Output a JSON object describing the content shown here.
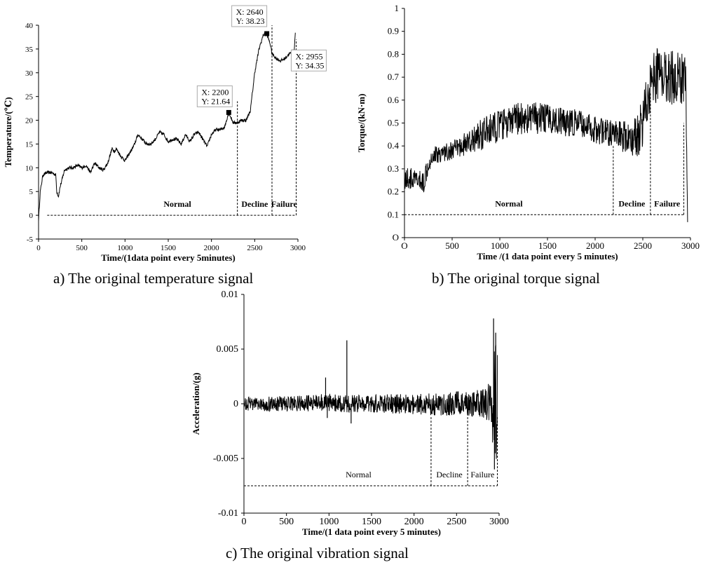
{
  "chart_data": [
    {
      "type": "line",
      "caption": "a) The original temperature signal",
      "xlabel": "Time/(1data point every 5minutes)",
      "ylabel": "Temperature/(℃)",
      "xlim": [
        0,
        3000
      ],
      "ylim": [
        -5,
        40
      ],
      "xticks": [
        0,
        500,
        1000,
        1500,
        2000,
        2500,
        3000
      ],
      "xtick_labels": [
        "0",
        "500",
        "1000",
        "1500",
        "2000",
        "2500",
        "3000"
      ],
      "yticks": [
        -5,
        0,
        5,
        10,
        15,
        20,
        25,
        30,
        35,
        40
      ],
      "ytick_labels": [
        "-5",
        "0",
        "5",
        "10",
        "15",
        "20",
        "25",
        "30",
        "35",
        "40"
      ],
      "grid": false,
      "series": [
        {
          "x": [
            0,
            20,
            50,
            100,
            150,
            200,
            210,
            230,
            250,
            300,
            350,
            400,
            450,
            500,
            550,
            600,
            650,
            700,
            750,
            800,
            850,
            880,
            900,
            950,
            1000,
            1050,
            1100,
            1150,
            1200,
            1250,
            1300,
            1350,
            1400,
            1450,
            1500,
            1550,
            1600,
            1650,
            1700,
            1750,
            1800,
            1850,
            1900,
            1950,
            2000,
            2050,
            2100,
            2150,
            2200,
            2250,
            2300,
            2350,
            2400,
            2450,
            2500,
            2550,
            2600,
            2640,
            2680,
            2700,
            2750,
            2800,
            2850,
            2900,
            2955,
            2970
          ],
          "y": [
            -1,
            5,
            8.5,
            9,
            9,
            8.5,
            5,
            4,
            6,
            9.5,
            10,
            10,
            10.5,
            10,
            10.5,
            9,
            11,
            10,
            9.5,
            11,
            14,
            13.5,
            14,
            12.5,
            11.5,
            13,
            14.5,
            17,
            16,
            15,
            15,
            16,
            17.5,
            17,
            15.5,
            16,
            16,
            15,
            17,
            15.5,
            17,
            17.5,
            16,
            14.5,
            17,
            18,
            18,
            18.5,
            21.64,
            19.5,
            19.5,
            20,
            20,
            22,
            30,
            35,
            38,
            38.23,
            36,
            34,
            33,
            32.5,
            33,
            34,
            34.35,
            38.5
          ]
        }
      ],
      "annotations": [
        {
          "label_x": "X: 2200",
          "label_y": "Y: 21.64",
          "x": 2200,
          "y": 21.64
        },
        {
          "label_x": "X: 2640",
          "label_y": "Y: 38.23",
          "x": 2640,
          "y": 38.23
        },
        {
          "label_x": "X: 2955",
          "label_y": "Y: 34.35",
          "x": 2955,
          "y": 34.35
        }
      ],
      "stages": [
        {
          "name": "Normal",
          "start": 100,
          "end": 2300
        },
        {
          "name": "Decline",
          "start": 2300,
          "end": 2700
        },
        {
          "name": "Failure",
          "start": 2700,
          "end": 2980
        }
      ],
      "stage_y": 0,
      "boundaries": [
        {
          "x": 2300,
          "top": 24
        },
        {
          "x": 2700,
          "top": 40
        },
        {
          "x": 2980,
          "top": 37
        }
      ],
      "bold_labels": true
    },
    {
      "type": "line",
      "caption": "b) The original torque signal",
      "xlabel": "Time /(1 data point every 5 minutes)",
      "ylabel": "Torque/(kN·m)",
      "xlim": [
        0,
        3000
      ],
      "ylim": [
        0,
        1
      ],
      "xticks": [
        0,
        500,
        1000,
        1500,
        2000,
        2500,
        3000
      ],
      "xtick_labels": [
        "O",
        "500",
        "1000",
        "1500",
        "2000",
        "2500",
        "3000"
      ],
      "yticks": [
        0,
        0.1,
        0.2,
        0.3,
        0.4,
        0.5,
        0.6,
        0.7,
        0.8,
        0.9,
        1
      ],
      "ytick_labels": [
        "O",
        "0.1",
        "0.2",
        "0.3",
        "0.4",
        "0.5",
        "0.6",
        "0.7",
        "0.8",
        "0.9",
        "1"
      ],
      "grid": false,
      "series": [
        {
          "x": [
            0,
            100,
            200,
            250,
            300,
            400,
            500,
            600,
            700,
            800,
            900,
            1000,
            1100,
            1200,
            1300,
            1400,
            1500,
            1600,
            1700,
            1800,
            1900,
            2000,
            2100,
            2200,
            2300,
            2400,
            2450,
            2500,
            2550,
            2600,
            2700,
            2800,
            2900,
            2950,
            2970
          ],
          "y": [
            0.26,
            0.25,
            0.24,
            0.33,
            0.36,
            0.37,
            0.38,
            0.4,
            0.42,
            0.45,
            0.47,
            0.49,
            0.5,
            0.52,
            0.52,
            0.52,
            0.52,
            0.51,
            0.5,
            0.5,
            0.49,
            0.47,
            0.46,
            0.45,
            0.44,
            0.43,
            0.45,
            0.52,
            0.62,
            0.7,
            0.72,
            0.7,
            0.7,
            0.72,
            0.08
          ],
          "noise": [
            0.05,
            0.05,
            0.05,
            0.05,
            0.04,
            0.04,
            0.04,
            0.05,
            0.05,
            0.07,
            0.07,
            0.07,
            0.07,
            0.07,
            0.07,
            0.07,
            0.06,
            0.06,
            0.06,
            0.06,
            0.06,
            0.06,
            0.06,
            0.06,
            0.07,
            0.08,
            0.1,
            0.12,
            0.12,
            0.12,
            0.12,
            0.12,
            0.12,
            0.12,
            0.02
          ]
        }
      ],
      "stages": [
        {
          "name": "Normal",
          "start": 0,
          "end": 2190
        },
        {
          "name": "Decline",
          "start": 2190,
          "end": 2580
        },
        {
          "name": "Failure",
          "start": 2580,
          "end": 2930
        }
      ],
      "stage_y": 0.1,
      "boundaries": [
        {
          "x": 2190,
          "top": 0.4
        },
        {
          "x": 2580,
          "top": 0.63
        },
        {
          "x": 2930,
          "top": 0.5
        }
      ],
      "bold_labels": true
    },
    {
      "type": "line",
      "caption": "c) The original vibration signal",
      "xlabel": "Time/(1 data point every 5 minutes)",
      "ylabel": "Acceleration/(g)",
      "xlim": [
        0,
        3000
      ],
      "ylim": [
        -0.01,
        0.01
      ],
      "xticks": [
        0,
        500,
        1000,
        1500,
        2000,
        2500,
        3000
      ],
      "xtick_labels": [
        "0",
        "500",
        "1000",
        "1500",
        "2000",
        "2500",
        "3000"
      ],
      "yticks": [
        -0.01,
        -0.005,
        0,
        0.005,
        0.01
      ],
      "ytick_labels": [
        "-0.01",
        "-0.005",
        "0",
        "0.005",
        "0.01"
      ],
      "grid": false,
      "series": [
        {
          "x": [
            0,
            300,
            600,
            900,
            1200,
            1500,
            1800,
            2100,
            2400,
            2700,
            2850,
            2900,
            2950,
            2980
          ],
          "y": [
            0,
            0,
            0,
            0.0001,
            0,
            0,
            0,
            0,
            0,
            0,
            0,
            0,
            0,
            0
          ],
          "noise": [
            0.0006,
            0.0007,
            0.0007,
            0.0008,
            0.0008,
            0.0008,
            0.0009,
            0.001,
            0.0011,
            0.0012,
            0.0014,
            0.0025,
            0.006,
            0.006
          ]
        }
      ],
      "spikes": [
        {
          "x": 960,
          "y": 0.0024
        },
        {
          "x": 980,
          "y": -0.0013
        },
        {
          "x": 1210,
          "y": 0.0058
        },
        {
          "x": 1260,
          "y": -0.0018
        },
        {
          "x": 2935,
          "y": 0.0078
        },
        {
          "x": 2945,
          "y": -0.006
        },
        {
          "x": 2960,
          "y": 0.0065
        }
      ],
      "stages": [
        {
          "name": "Normal",
          "start": 0,
          "end": 2200
        },
        {
          "name": "Decline",
          "start": 2200,
          "end": 2630
        },
        {
          "name": "Failure",
          "start": 2630,
          "end": 2980
        }
      ],
      "stage_y": -0.0075,
      "boundaries": [
        {
          "x": 2200,
          "top": -0.0012
        },
        {
          "x": 2630,
          "top": -0.0012
        },
        {
          "x": 2980,
          "top": -0.0012
        }
      ],
      "bold_labels": false
    }
  ]
}
